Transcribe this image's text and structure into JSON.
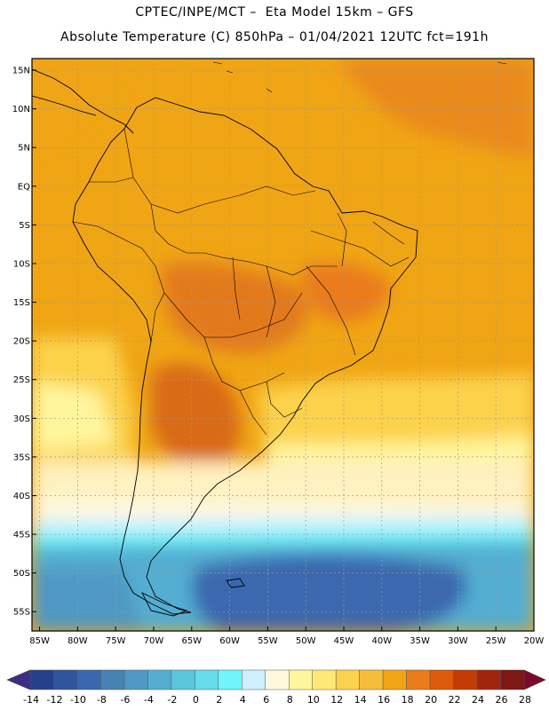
{
  "header": {
    "line1": "CPTEC/INPE/MCT –  Eta Model 15km – GFS",
    "line2": "Absolute Temperature (C) 850hPa – 01/04/2021 12UTC fct=191h"
  },
  "map": {
    "lat_labels": [
      "15N",
      "10N",
      "5N",
      "EQ",
      "5S",
      "10S",
      "15S",
      "20S",
      "25S",
      "30S",
      "35S",
      "40S",
      "45S",
      "50S",
      "55S"
    ],
    "lat_values": [
      15,
      10,
      5,
      0,
      -5,
      -10,
      -15,
      -20,
      -25,
      -30,
      -35,
      -40,
      -45,
      -50,
      -55
    ],
    "lon_labels": [
      "85W",
      "80W",
      "75W",
      "70W",
      "65W",
      "60W",
      "55W",
      "50W",
      "45W",
      "40W",
      "35W",
      "30W",
      "25W",
      "20W"
    ],
    "lon_values": [
      -85,
      -80,
      -75,
      -70,
      -65,
      -60,
      -55,
      -50,
      -45,
      -40,
      -35,
      -30,
      -25,
      -20
    ],
    "lat_range": [
      -57.5,
      16.5
    ],
    "lon_range": [
      -86,
      -20
    ]
  },
  "colorbar": {
    "labels": [
      "-14",
      "-12",
      "-10",
      "-8",
      "-6",
      "-4",
      "-2",
      "0",
      "2",
      "4",
      "6",
      "8",
      "10",
      "12",
      "14",
      "16",
      "18",
      "20",
      "22",
      "24",
      "26",
      "28"
    ],
    "colors": [
      "#27408b",
      "#2f559f",
      "#3a68ae",
      "#4682b4",
      "#4f98c4",
      "#53aed2",
      "#5ac6dd",
      "#67dceb",
      "#6ff5fa",
      "#cfefff",
      "#fff8dd",
      "#fff59c",
      "#ffe878",
      "#fcd24c",
      "#f5bd39",
      "#f0a514",
      "#ea7c1c",
      "#dc5b0b",
      "#c43c05",
      "#a1250d",
      "#7f1714"
    ],
    "arrow_left": "#3b2e86",
    "arrow_right": "#7b0a2a"
  }
}
